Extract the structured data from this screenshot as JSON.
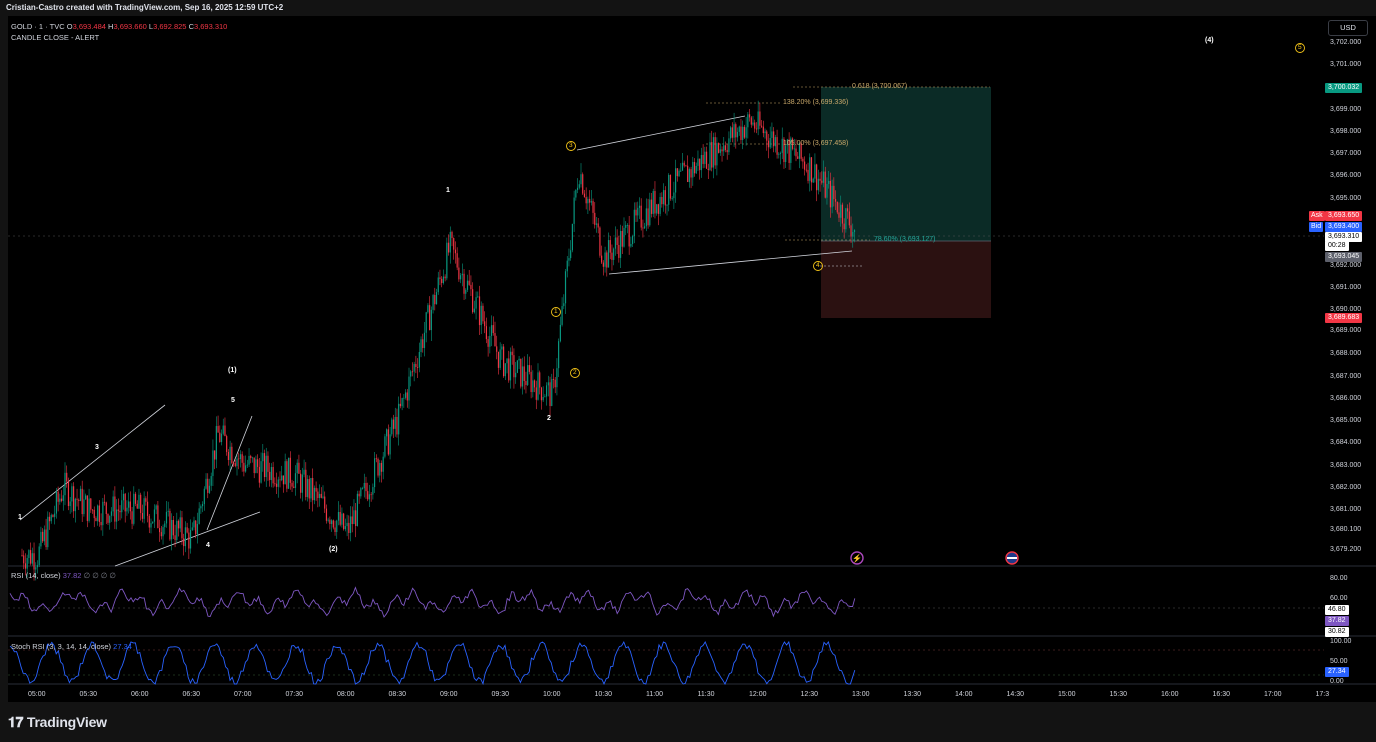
{
  "header": {
    "credit": "Cristian-Castro created with TradingView.com, Sep 16, 2025 12:59 UTC+2"
  },
  "legend": {
    "symbol": "GOLD · 1 · TVC",
    "open_label": "O",
    "open": "3,693.484",
    "high_label": "H",
    "high": "3,693.660",
    "low_label": "L",
    "low": "3,692.825",
    "close_label": "C",
    "close": "3,693.310",
    "alert": "CANDLE CLOSE - ALERT"
  },
  "currency_button": "USD",
  "price_axis": {
    "ticks": [
      "3,702.000",
      "3,701.000",
      "3,699.000",
      "3,698.000",
      "3,697.000",
      "3,696.000",
      "3,695.000",
      "3,692.000",
      "3,691.000",
      "3,690.000",
      "3,689.000",
      "3,688.000",
      "3,687.000",
      "3,686.000",
      "3,685.000",
      "3,684.000",
      "3,683.000",
      "3,682.000",
      "3,681.000",
      "3,680.100",
      "3,679.200"
    ],
    "tick_values": [
      3702,
      3701,
      3699,
      3698,
      3697,
      3696,
      3695,
      3692,
      3691,
      3690,
      3689,
      3688,
      3687,
      3686,
      3685,
      3684,
      3683,
      3682,
      3681,
      3680.1,
      3679.2
    ],
    "tags": {
      "target": "3,700.032",
      "ask_label": "Ask",
      "ask": "3,693.650",
      "bid_label": "Bid",
      "bid": "3,693.400",
      "last": "3,693.310",
      "countdown": "00:28",
      "entry": "3,693.045",
      "stop": "3,689.683"
    }
  },
  "time_axis": {
    "labels": [
      "05:00",
      "05:30",
      "06:00",
      "06:30",
      "07:00",
      "07:30",
      "08:00",
      "08:30",
      "09:00",
      "09:30",
      "10:00",
      "10:30",
      "11:00",
      "11:30",
      "12:00",
      "12:30",
      "13:00",
      "13:30",
      "14:00",
      "14:30",
      "15:00",
      "15:30",
      "16:00",
      "16:30",
      "17:00",
      "17:3"
    ]
  },
  "fib_labels": {
    "f0618": "0.618 (3,700.067)",
    "f1382": "138.20% (3,699.336)",
    "f105": "105.00% (3,697.458)",
    "f786": "78.60% (3,693.127)"
  },
  "wave_labels": {
    "w1_small": "1",
    "w3_small": "3",
    "w4_small": "4",
    "w5_small": "5",
    "w1_paren": "(1)",
    "w2_paren": "(2)",
    "w1_major": "1",
    "w2_major": "2",
    "w1_circ": "1",
    "w2_circ": "2",
    "w3_circ": "3",
    "w4_circ": "4",
    "w5_circ": "5",
    "w4_paren": "(4)"
  },
  "rsi": {
    "title": "RSI (14, close)",
    "value": "37.82",
    "extras": "∅ ∅ ∅ ∅",
    "axis": [
      "80.00",
      "60.00"
    ],
    "tags": {
      "upper": "46.80",
      "current": "37.82",
      "lower": "30.82"
    }
  },
  "stoch": {
    "title": "Stoch RSI (3, 3, 14, 14, close)",
    "value": "27.34",
    "axis": [
      "100.00",
      "50.00",
      "0.00"
    ],
    "current_tag": "27.34"
  },
  "branding": {
    "logo_text": "TradingView"
  },
  "colors": {
    "up": "#089981",
    "down": "#f23645",
    "target_zone": "#0b2b26",
    "stop_zone": "#2b1111",
    "rsi": "#7e57c2",
    "stoch": "#2962ff",
    "wave_yellow": "#f5c518",
    "fib": "#c9a86a"
  },
  "chart_data": {
    "type": "candlestick",
    "symbol": "GOLD",
    "interval": "1",
    "ylim": [
      3679.2,
      3702.5
    ],
    "approx_path": [
      {
        "time": "05:00",
        "price": 3679.5
      },
      {
        "time": "05:15",
        "price": 3682.5
      },
      {
        "time": "05:30",
        "price": 3681.5
      },
      {
        "time": "06:00",
        "price": 3681.5
      },
      {
        "time": "06:30",
        "price": 3680.2
      },
      {
        "time": "06:45",
        "price": 3684.8
      },
      {
        "time": "07:00",
        "price": 3683.5
      },
      {
        "time": "07:30",
        "price": 3683.0
      },
      {
        "time": "08:00",
        "price": 3680.5
      },
      {
        "time": "08:30",
        "price": 3685.5
      },
      {
        "time": "09:00",
        "price": 3693.0
      },
      {
        "time": "09:30",
        "price": 3688.0
      },
      {
        "time": "10:00",
        "price": 3686.5
      },
      {
        "time": "10:15",
        "price": 3696.5
      },
      {
        "time": "10:30",
        "price": 3692.5
      },
      {
        "time": "11:00",
        "price": 3695.0
      },
      {
        "time": "11:30",
        "price": 3697.0
      },
      {
        "time": "11:55",
        "price": 3698.5
      },
      {
        "time": "12:30",
        "price": 3696.5
      },
      {
        "time": "13:00",
        "price": 3693.3
      }
    ]
  }
}
